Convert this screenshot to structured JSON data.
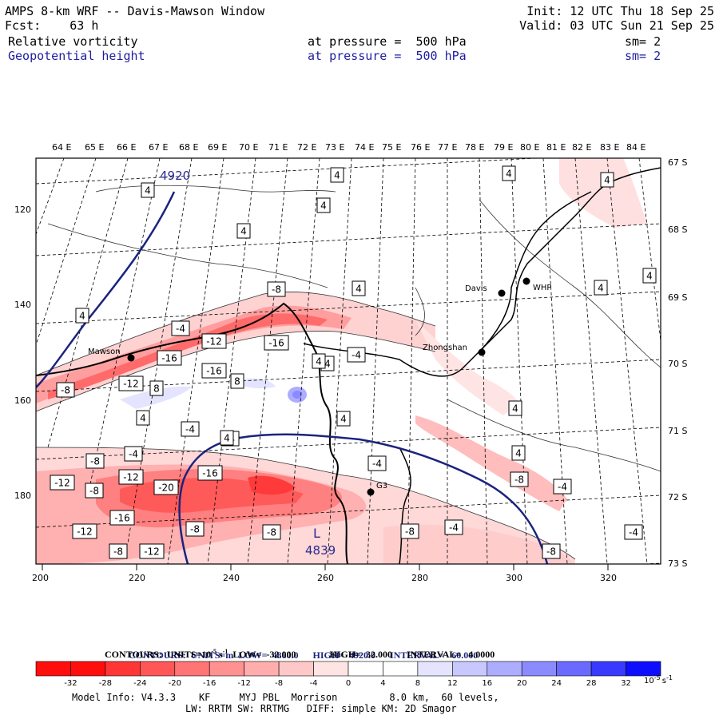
{
  "header": {
    "model_title": "AMPS 8-km WRF -- Davis-Mawson Window",
    "init": "Init: 12 UTC Thu 18 Sep 25",
    "fcst": "Fcst:    63 h",
    "valid": "Valid: 03 UTC Sun 21 Sep 25",
    "field1": {
      "name": "Relative vorticity",
      "level": "at pressure =  500 hPa",
      "sm": "sm= 2"
    },
    "field2": {
      "name": "Geopotential height",
      "level": "at pressure =  500 hPa",
      "sm": "sm= 2"
    }
  },
  "map": {
    "x_ticks": [
      "200",
      "220",
      "240",
      "260",
      "280",
      "300",
      "320"
    ],
    "y_ticks": [
      "120",
      "140",
      "160",
      "180"
    ],
    "lon_labels": [
      "64 E",
      "65 E",
      "66 E",
      "67 E",
      "68 E",
      "69 E",
      "70 E",
      "71 E",
      "72 E",
      "73 E",
      "74 E",
      "75 E",
      "76 E",
      "77 E",
      "78 E",
      "79 E",
      "80 E",
      "81 E",
      "82 E",
      "83 E",
      "84 E"
    ],
    "lat_labels": [
      "67 S",
      "68 S",
      "69 S",
      "70 S",
      "71 S",
      "72 S",
      "73 S"
    ],
    "stations": [
      "Mawson",
      "Davis",
      "WHP",
      "Zhongshan",
      "G3"
    ],
    "height_labels": [
      "4920",
      "4839"
    ],
    "low_marker": "L",
    "vorticity_labels": [
      "4",
      "4",
      "4",
      "4",
      "4",
      "4",
      "4",
      "4",
      "4",
      "4",
      "4",
      "4",
      "4",
      "4",
      "8",
      "4",
      "-8",
      "-4",
      "-12",
      "-16",
      "-8",
      "-4",
      "-16",
      "-12",
      "-16",
      "8",
      "-4",
      "-4",
      "-4",
      "-4",
      "-8",
      "-12",
      "-8",
      "-12",
      "-20",
      "-16",
      "-16",
      "-8",
      "-12",
      "-8",
      "-12",
      "-8",
      "-4",
      "-8",
      "-8",
      "-4",
      "-4",
      "-8",
      "4",
      "4"
    ],
    "colors": {
      "height_contour": "#1a237e",
      "coast": "#000000"
    }
  },
  "contours": {
    "height": {
      "prefix": "CONTOURS:  UNITS=m  LOW=  4860.0",
      "high": "HIGH=  4920.0",
      "interval": "INTERVAL=   60.000"
    },
    "vorticity": {
      "prefix": "CONTOURS:  UNITS=10",
      "exp": "-5",
      "s": "s",
      "sexp": "-1",
      "low": "LOW=  -32.000",
      "high": "HIGH=  32.000",
      "interval": "INTERVAL=   4.0000"
    }
  },
  "colorbar": {
    "labels": [
      "-32",
      "-28",
      "-24",
      "-20",
      "-16",
      "-12",
      "-8",
      "-4",
      "0",
      "4",
      "8",
      "12",
      "16",
      "20",
      "24",
      "28",
      "32"
    ],
    "unit": "10",
    "unit_exp": "-5",
    "unit_s": "s",
    "unit_s_exp": "-1",
    "colors": [
      "#ff0e0e",
      "#ff3636",
      "#ff5757",
      "#ff7474",
      "#ff9191",
      "#ffadad",
      "#ffc8c8",
      "#ffe4e4",
      "#ffffff",
      "#ffffff",
      "#e4e4ff",
      "#c8c8ff",
      "#adadff",
      "#8b8bff",
      "#6a6aff",
      "#3a3aff",
      "#0e0eff"
    ]
  },
  "model_info": {
    "line1": "Model Info: V4.3.3    KF     MYJ PBL  Morrison         8.0 km,  60 levels,",
    "line2": "LW: RRTM SW: RRTMG   DIFF: simple KM: 2D Smagor"
  }
}
